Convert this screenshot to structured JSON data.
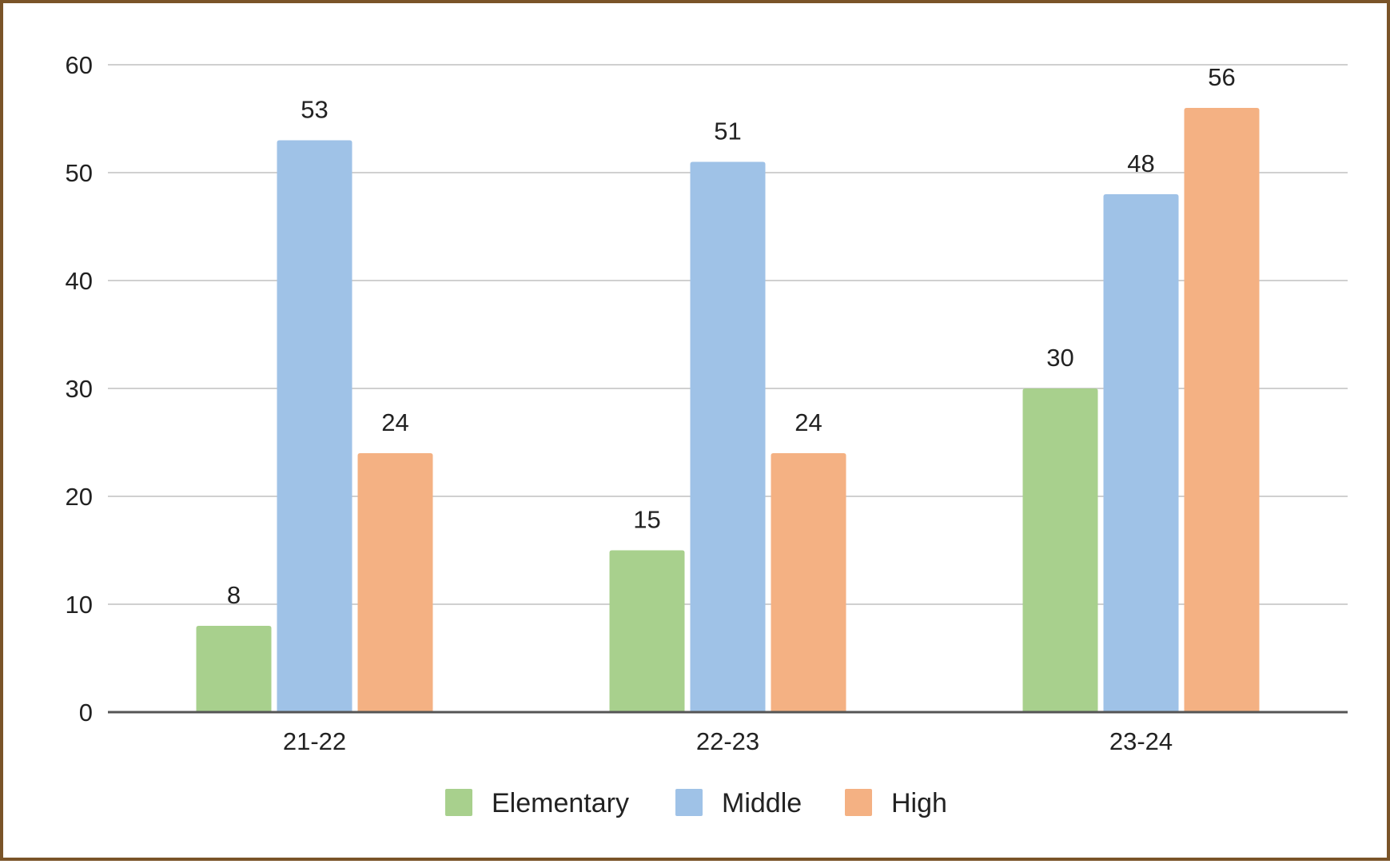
{
  "chart_data": {
    "type": "bar",
    "title": "",
    "xlabel": "",
    "ylabel": "",
    "categories": [
      "21-22",
      "22-23",
      "23-24"
    ],
    "series": [
      {
        "name": "Elementary",
        "values": [
          8,
          15,
          30
        ],
        "color": "#a8d08d"
      },
      {
        "name": "Middle",
        "values": [
          53,
          51,
          48
        ],
        "color": "#9fc2e7"
      },
      {
        "name": "High",
        "values": [
          24,
          24,
          56
        ],
        "color": "#f4b183"
      }
    ],
    "ylim": [
      0,
      60
    ],
    "yticks": [
      0,
      10,
      20,
      30,
      40,
      50,
      60
    ],
    "grid": true,
    "legend_position": "bottom",
    "data_labels": true,
    "colors": {
      "frame": "#7a5428",
      "gridline": "#d0d0d0",
      "axis": "#555555"
    }
  }
}
